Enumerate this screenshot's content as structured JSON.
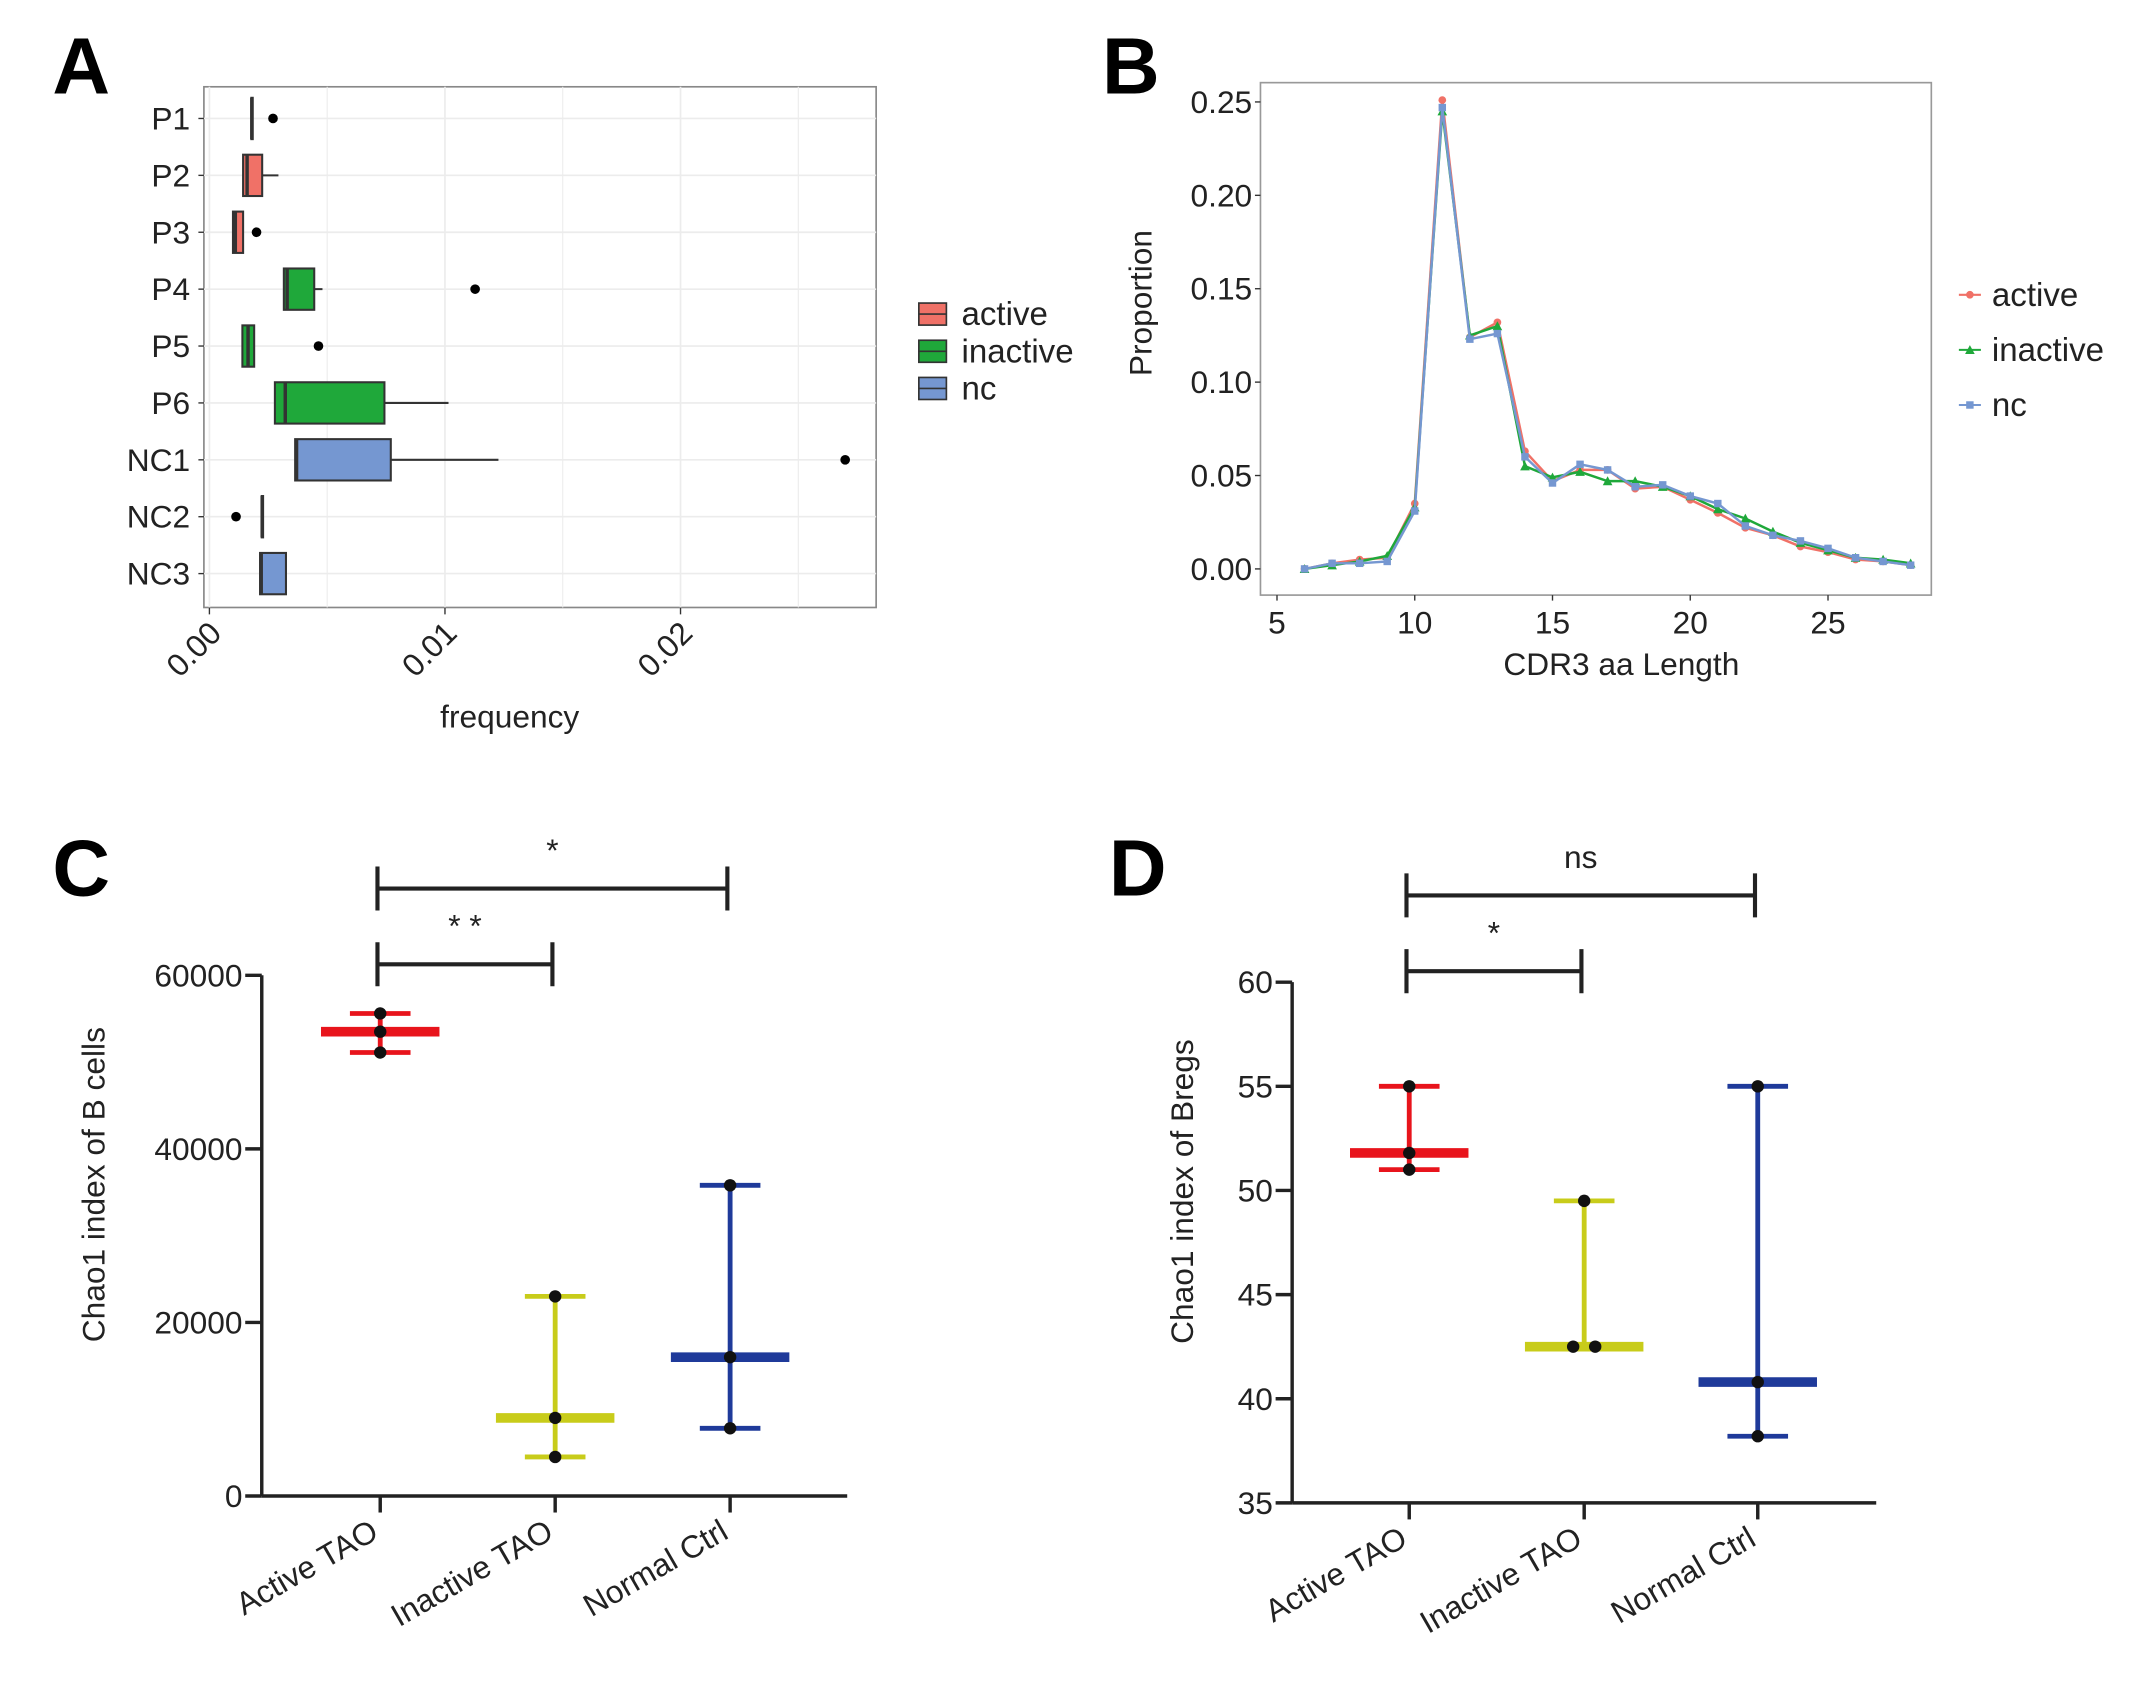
{
  "chart_data": [
    {
      "panel": "A",
      "type": "boxplot",
      "xlabel": "frequency",
      "xticks": [
        "0.00",
        "0.01",
        "0.02"
      ],
      "xlim": [
        0,
        0.0285
      ],
      "grid": true,
      "legend_position": "right",
      "legend": [
        {
          "name": "active",
          "color": "#f07167"
        },
        {
          "name": "inactive",
          "color": "#1fa83a"
        },
        {
          "name": "nc",
          "color": "#7597d1"
        }
      ],
      "categories": [
        "P1",
        "P2",
        "P3",
        "P4",
        "P5",
        "P6",
        "NC1",
        "NC2",
        "NC3"
      ],
      "boxes": [
        {
          "group": "active",
          "q1": 0.00178,
          "median": 0.0018,
          "q3": 0.00182,
          "wmin": 0.00178,
          "wmax": 0.00182,
          "outliers": [
            0.0027
          ]
        },
        {
          "group": "active",
          "q1": 0.00143,
          "median": 0.0016,
          "q3": 0.00224,
          "wmin": 0.00143,
          "wmax": 0.00293,
          "outliers": []
        },
        {
          "group": "active",
          "q1": 0.001,
          "median": 0.0011,
          "q3": 0.00143,
          "wmin": 0.001,
          "wmax": 0.00143,
          "outliers": [
            0.002
          ]
        },
        {
          "group": "inactive",
          "q1": 0.00316,
          "median": 0.0033,
          "q3": 0.00445,
          "wmin": 0.00316,
          "wmax": 0.0048,
          "outliers": [
            0.01128
          ]
        },
        {
          "group": "inactive",
          "q1": 0.0014,
          "median": 0.00164,
          "q3": 0.0019,
          "wmin": 0.0014,
          "wmax": 0.0019,
          "outliers": [
            0.00463
          ]
        },
        {
          "group": "inactive",
          "q1": 0.00278,
          "median": 0.00322,
          "q3": 0.00743,
          "wmin": 0.00278,
          "wmax": 0.01015,
          "outliers": []
        },
        {
          "group": "nc",
          "q1": 0.00364,
          "median": 0.0037,
          "q3": 0.0077,
          "wmin": 0.00364,
          "wmax": 0.01227,
          "outliers": [
            0.02699
          ]
        },
        {
          "group": "nc",
          "q1": 0.00222,
          "median": 0.00224,
          "q3": 0.00226,
          "wmin": 0.00222,
          "wmax": 0.00226,
          "outliers": [
            0.00113
          ]
        },
        {
          "group": "nc",
          "q1": 0.00215,
          "median": 0.0022,
          "q3": 0.00325,
          "wmin": 0.00215,
          "wmax": 0.00325,
          "outliers": []
        }
      ]
    },
    {
      "panel": "B",
      "type": "line",
      "xlabel": "CDR3 aa Length",
      "ylabel": "Proportion",
      "xlim": [
        4.9,
        29.3
      ],
      "ylim": [
        -0.014,
        0.26
      ],
      "xticks": [
        "5",
        "10",
        "15",
        "20",
        "25"
      ],
      "yticks": [
        "0.00",
        "0.05",
        "0.10",
        "0.15",
        "0.20",
        "0.25"
      ],
      "grid": false,
      "legend_position": "right",
      "x": [
        6,
        7,
        8,
        9,
        10,
        11,
        12,
        13,
        14,
        15,
        16,
        17,
        18,
        19,
        20,
        21,
        22,
        23,
        24,
        25,
        26,
        27,
        28
      ],
      "series": [
        {
          "name": "active",
          "color": "#f07167",
          "marker": "circle",
          "values": [
            0,
            0.003,
            0.005,
            0.006,
            0.035,
            0.251,
            0.124,
            0.132,
            0.063,
            0.047,
            0.053,
            0.053,
            0.043,
            0.044,
            0.037,
            0.03,
            0.022,
            0.018,
            0.012,
            0.009,
            0.005,
            0.004,
            0.002
          ]
        },
        {
          "name": "inactive",
          "color": "#1fa83a",
          "marker": "triangle",
          "values": [
            0,
            0.002,
            0.004,
            0.007,
            0.033,
            0.245,
            0.125,
            0.13,
            0.055,
            0.049,
            0.052,
            0.047,
            0.047,
            0.044,
            0.039,
            0.032,
            0.027,
            0.02,
            0.014,
            0.01,
            0.006,
            0.005,
            0.003
          ]
        },
        {
          "name": "nc",
          "color": "#7597d1",
          "marker": "square",
          "values": [
            0,
            0.003,
            0.003,
            0.004,
            0.031,
            0.247,
            0.123,
            0.126,
            0.06,
            0.046,
            0.056,
            0.053,
            0.044,
            0.045,
            0.039,
            0.035,
            0.023,
            0.018,
            0.015,
            0.011,
            0.006,
            0.004,
            0.002
          ]
        }
      ]
    },
    {
      "panel": "C",
      "type": "scatter",
      "ylabel": "Chao1  index of B cells",
      "ylim": [
        0,
        60000
      ],
      "yticks": [
        "0",
        "20000",
        "40000",
        "60000"
      ],
      "categories": [
        "Active TAO",
        "Inactive TAO",
        "Normal Ctrl"
      ],
      "groups": [
        {
          "color": "#e8141c",
          "center": 53500,
          "top": 55600,
          "bottom": 51100,
          "points": [
            55600,
            53500,
            51100
          ]
        },
        {
          "color": "#c8cc1a",
          "center": 9000,
          "top": 23000,
          "bottom": 4500,
          "points": [
            23000,
            9000,
            4500
          ]
        },
        {
          "color": "#1f3a9a",
          "center": 16000,
          "top": 35800,
          "bottom": 7800,
          "points": [
            35800,
            16000,
            7800
          ]
        }
      ],
      "significance": [
        {
          "from": 0,
          "to": 2,
          "label": "*"
        },
        {
          "from": 0,
          "to": 1,
          "label": "* *"
        }
      ]
    },
    {
      "panel": "D",
      "type": "scatter",
      "ylabel": "Chao1  index of Bregs",
      "ylim": [
        35,
        60
      ],
      "yticks": [
        "35",
        "40",
        "45",
        "50",
        "55",
        "60"
      ],
      "categories": [
        "Active TAO",
        "Inactive TAO",
        "Normal Ctrl"
      ],
      "groups": [
        {
          "color": "#e8141c",
          "center": 51.8,
          "top": 55,
          "bottom": 51,
          "points": [
            55,
            51.8,
            51
          ]
        },
        {
          "color": "#c8cc1a",
          "center": 42.5,
          "top": 49.5,
          "bottom": 42.5,
          "points": [
            49.5,
            42.5,
            42.5
          ]
        },
        {
          "color": "#1f3a9a",
          "center": 40.8,
          "top": 55,
          "bottom": 38.2,
          "points": [
            55,
            40.8,
            38.2
          ]
        }
      ],
      "significance": [
        {
          "from": 0,
          "to": 2,
          "label": "ns"
        },
        {
          "from": 0,
          "to": 1,
          "label": "*"
        }
      ]
    }
  ],
  "panel_labels": [
    "A",
    "B",
    "C",
    "D"
  ]
}
